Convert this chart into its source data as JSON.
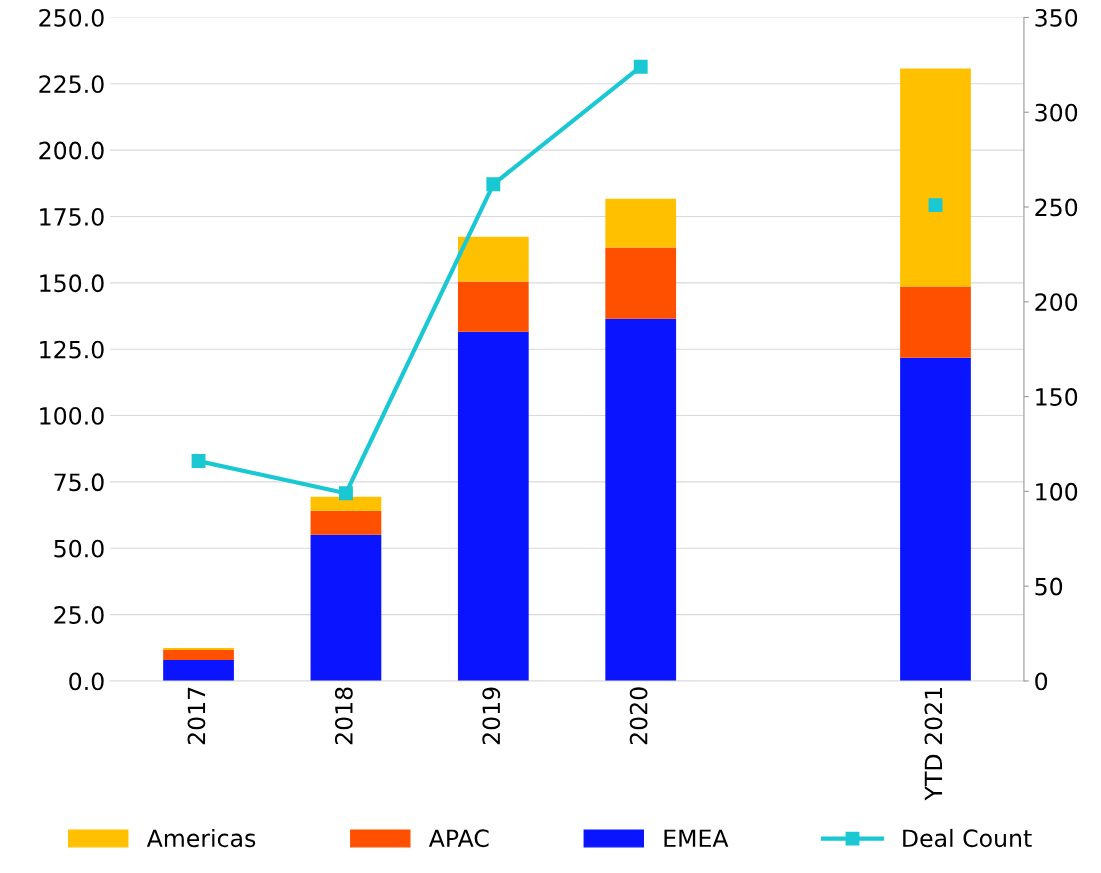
{
  "chart_data": {
    "type": "bar",
    "stacked": true,
    "categories": [
      "2017",
      "2018",
      "2019",
      "2020",
      null,
      "YTD 2021"
    ],
    "series": [
      {
        "name": "EMEA",
        "color": "#0a14ff",
        "values": [
          7.9,
          55.1,
          131.6,
          136.5,
          null,
          121.8
        ]
      },
      {
        "name": "APAC",
        "color": "#ff5000",
        "values": [
          3.8,
          9.0,
          18.9,
          26.8,
          null,
          26.8
        ]
      },
      {
        "name": "Americas",
        "color": "#ffc000",
        "values": [
          0.7,
          5.3,
          16.9,
          18.4,
          null,
          82.2
        ]
      },
      {
        "name": "Deal Count",
        "type": "line",
        "axis": "y2",
        "color": "#19c8d2",
        "marker": "square",
        "values": [
          116,
          99,
          262,
          324,
          null,
          251
        ]
      }
    ],
    "ylim": [
      0,
      250
    ],
    "yticks": [
      {
        "value": 0,
        "label": "0.0"
      },
      {
        "value": 25,
        "label": "25.0"
      },
      {
        "value": 50,
        "label": "50.0"
      },
      {
        "value": 75,
        "label": "75.0"
      },
      {
        "value": 100,
        "label": "100.0"
      },
      {
        "value": 125,
        "label": "125.0"
      },
      {
        "value": 150,
        "label": "150.0"
      },
      {
        "value": 175,
        "label": "175.0"
      },
      {
        "value": 200,
        "label": "200.0"
      },
      {
        "value": 225,
        "label": "225.0"
      },
      {
        "value": 250,
        "label": "250.0"
      }
    ],
    "y2lim": [
      0,
      350
    ],
    "y2ticks": [
      0,
      50,
      100,
      150,
      200,
      250,
      300,
      350
    ],
    "grid": "y",
    "legend": "bottom"
  }
}
